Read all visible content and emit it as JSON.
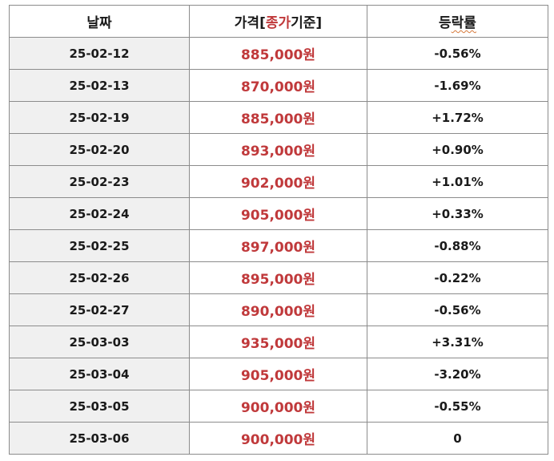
{
  "table": {
    "headers": {
      "date": "날짜",
      "price_prefix": "가격[",
      "price_highlight": "종가",
      "price_suffix": "기준]",
      "rate_part1": "등",
      "rate_part2": "락률"
    },
    "rows": [
      {
        "date": "25-02-12",
        "price": "885,000원",
        "rate": "-0.56%"
      },
      {
        "date": "25-02-13",
        "price": "870,000원",
        "rate": "-1.69%"
      },
      {
        "date": "25-02-19",
        "price": "885,000원",
        "rate": "+1.72%"
      },
      {
        "date": "25-02-20",
        "price": "893,000원",
        "rate": "+0.90%"
      },
      {
        "date": "25-02-23",
        "price": "902,000원",
        "rate": "+1.01%"
      },
      {
        "date": "25-02-24",
        "price": "905,000원",
        "rate": "+0.33%"
      },
      {
        "date": "25-02-25",
        "price": "897,000원",
        "rate": "-0.88%"
      },
      {
        "date": "25-02-26",
        "price": "895,000원",
        "rate": "-0.22%"
      },
      {
        "date": "25-02-27",
        "price": "890,000원",
        "rate": "-0.56%"
      },
      {
        "date": "25-03-03",
        "price": "935,000원",
        "rate": "+3.31%"
      },
      {
        "date": "25-03-04",
        "price": "905,000원",
        "rate": "-3.20%"
      },
      {
        "date": "25-03-05",
        "price": "900,000원",
        "rate": "-0.55%"
      },
      {
        "date": "25-03-06",
        "price": "900,000원",
        "rate": "0"
      }
    ]
  },
  "colors": {
    "price_text": "#c0393b",
    "date_cell_bg": "#f0f0f0",
    "border": "#8c8c8c",
    "spellcheck_underline": "#d77a3c"
  }
}
